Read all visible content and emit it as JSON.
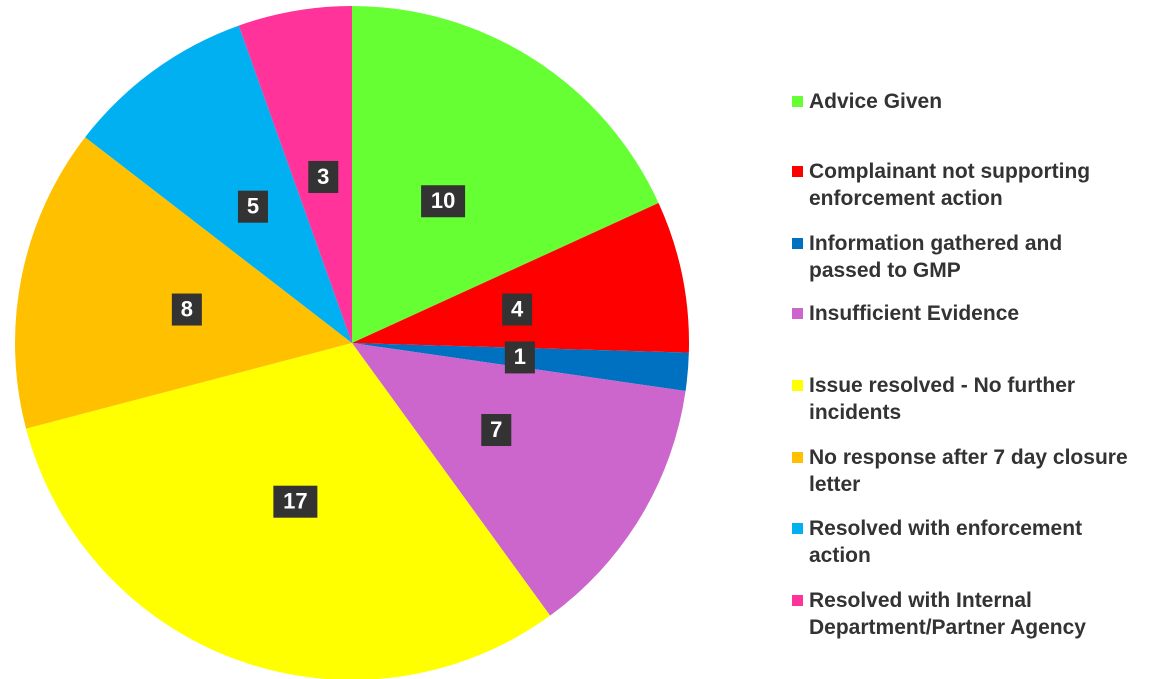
{
  "chart_data": {
    "type": "pie",
    "categories": [
      "Advice Given",
      "Complainant not supporting enforcement action",
      "Information gathered and passed to GMP",
      "Insufficient Evidence",
      "Issue resolved - No further incidents",
      "No response after 7 day closure letter",
      "Resolved with enforcement action",
      "Resolved with Internal Department/Partner Agency"
    ],
    "values": [
      10,
      4,
      1,
      7,
      17,
      8,
      5,
      3
    ],
    "colors": [
      "#66ff33",
      "#ff0000",
      "#0070c0",
      "#cc66cc",
      "#ffff00",
      "#ffc000",
      "#00b0f0",
      "#ff3399"
    ],
    "legend": "right"
  }
}
